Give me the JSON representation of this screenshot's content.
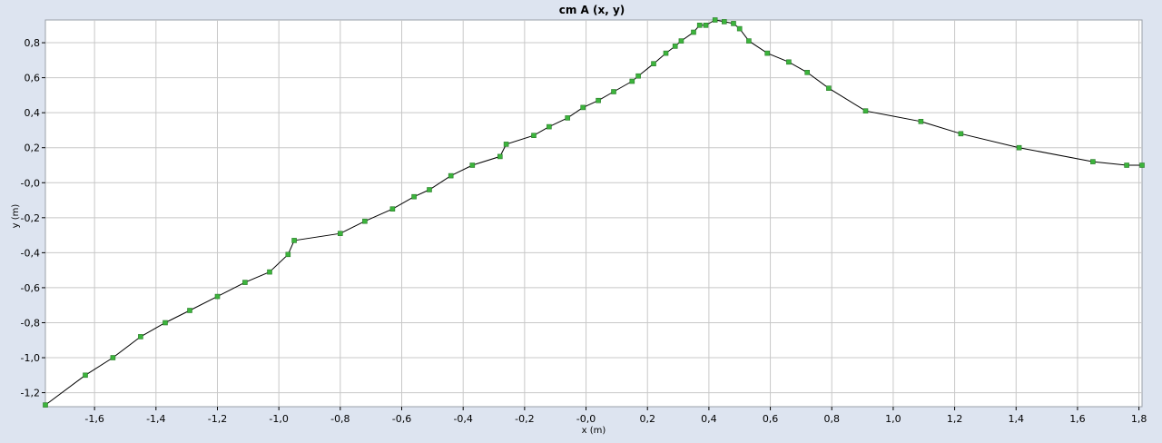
{
  "chart_data": {
    "type": "line",
    "title": "cm A (x, y)",
    "xlabel": "x (m)",
    "ylabel": "y (m)",
    "xlim": [
      -1.76,
      1.81
    ],
    "ylim": [
      -1.28,
      0.93
    ],
    "grid": true,
    "colors": {
      "line": "#000000",
      "marker": "#3cb43c",
      "marker_edge": "#2a7a2a",
      "plot_bg": "#ffffff",
      "grid": "#c8c8c8",
      "page_bg": "#dde4f0"
    },
    "x_ticks": [
      {
        "value": -1.6,
        "label": "-1,6"
      },
      {
        "value": -1.4,
        "label": "-1,4"
      },
      {
        "value": -1.2,
        "label": "-1,2"
      },
      {
        "value": -1.0,
        "label": "-1,0"
      },
      {
        "value": -0.8,
        "label": "-0,8"
      },
      {
        "value": -0.6,
        "label": "-0,6"
      },
      {
        "value": -0.4,
        "label": "-0,4"
      },
      {
        "value": -0.2,
        "label": "-0,2"
      },
      {
        "value": 0.0,
        "label": "-0,0"
      },
      {
        "value": 0.2,
        "label": "0,2"
      },
      {
        "value": 0.4,
        "label": "0,4"
      },
      {
        "value": 0.6,
        "label": "0,6"
      },
      {
        "value": 0.8,
        "label": "0,8"
      },
      {
        "value": 1.0,
        "label": "1,0"
      },
      {
        "value": 1.2,
        "label": "1,2"
      },
      {
        "value": 1.4,
        "label": "1,4"
      },
      {
        "value": 1.6,
        "label": "1,6"
      },
      {
        "value": 1.8,
        "label": "1,8"
      }
    ],
    "y_ticks": [
      {
        "value": 0.8,
        "label": "0,8"
      },
      {
        "value": 0.6,
        "label": "0,6"
      },
      {
        "value": 0.4,
        "label": "0,4"
      },
      {
        "value": 0.2,
        "label": "0,2"
      },
      {
        "value": 0.0,
        "label": "-0,0"
      },
      {
        "value": -0.2,
        "label": "-0,2"
      },
      {
        "value": -0.4,
        "label": "-0,4"
      },
      {
        "value": -0.6,
        "label": "-0,6"
      },
      {
        "value": -0.8,
        "label": "-0,8"
      },
      {
        "value": -1.0,
        "label": "-1,0"
      },
      {
        "value": -1.2,
        "label": "-1,2"
      }
    ],
    "series": [
      {
        "x": [
          -1.76,
          -1.63,
          -1.54,
          -1.45,
          -1.37,
          -1.29,
          -1.2,
          -1.11,
          -1.03,
          -0.97,
          -0.95,
          -0.8,
          -0.72,
          -0.63,
          -0.56,
          -0.51,
          -0.44,
          -0.37,
          -0.28,
          -0.26,
          -0.17,
          -0.12,
          -0.06,
          -0.01,
          0.04,
          0.09,
          0.15,
          0.17,
          0.22,
          0.26,
          0.29,
          0.31,
          0.35,
          0.37,
          0.39,
          0.42,
          0.45,
          0.48,
          0.5,
          0.53,
          0.59,
          0.66,
          0.72,
          0.79,
          0.91,
          1.09,
          1.22,
          1.41,
          1.65,
          1.76,
          1.81
        ],
        "y": [
          -1.27,
          -1.1,
          -1.0,
          -0.88,
          -0.8,
          -0.73,
          -0.65,
          -0.57,
          -0.51,
          -0.41,
          -0.33,
          -0.29,
          -0.22,
          -0.15,
          -0.08,
          -0.04,
          0.04,
          0.1,
          0.15,
          0.22,
          0.27,
          0.32,
          0.37,
          0.43,
          0.47,
          0.52,
          0.58,
          0.61,
          0.68,
          0.74,
          0.78,
          0.81,
          0.86,
          0.9,
          0.9,
          0.93,
          0.92,
          0.91,
          0.88,
          0.81,
          0.74,
          0.69,
          0.63,
          0.54,
          0.41,
          0.35,
          0.28,
          0.2,
          0.12,
          0.1,
          0.1
        ]
      }
    ]
  }
}
